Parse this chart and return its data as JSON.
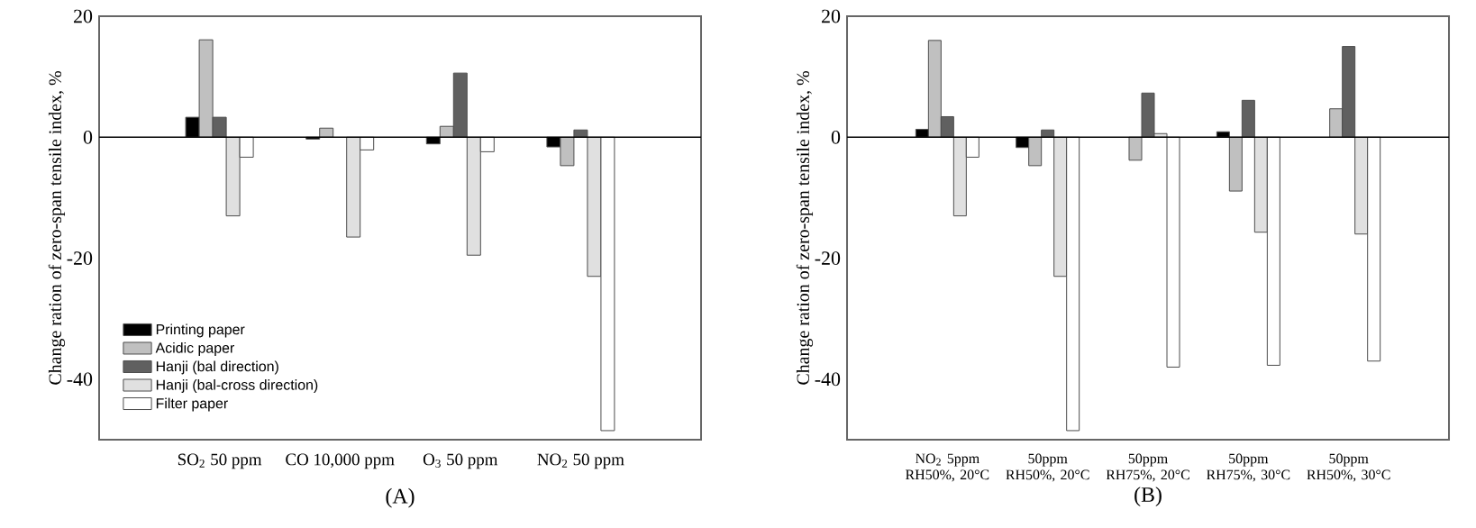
{
  "chart_data": [
    {
      "type": "bar",
      "xlabel": "(A)",
      "ylabel": "Change ration of zero-span tensile index, %",
      "categories": [
        "SO$_{2}$ 50 ppm",
        "CO 10,000 ppm",
        "O$_{3}$ 50 ppm",
        "NO$_{2}$ 50 ppm"
      ],
      "ylim": [
        -50,
        20
      ],
      "yticks": [
        -40,
        -20,
        0,
        20
      ],
      "legend": "bottom left",
      "ref_lines": [
        {
          "axis": "y",
          "value": 0,
          "color": "#000000"
        }
      ],
      "series": [
        {
          "name": "Printing paper",
          "color": "#000000",
          "values": [
            3.3,
            -0.3,
            -1.1,
            -1.6
          ]
        },
        {
          "name": "Acidic paper",
          "color": "#c0c0c0",
          "values": [
            16.1,
            1.5,
            1.8,
            -4.7
          ]
        },
        {
          "name": "Hanji (bal direction)",
          "color": "#606060",
          "values": [
            3.3,
            null,
            10.6,
            1.2
          ]
        },
        {
          "name": "Hanji (bal-cross direction)",
          "color": "#e0e0e0",
          "values": [
            -13,
            -16.5,
            -19.5,
            -23
          ]
        },
        {
          "name": "Filter paper",
          "color": "#ffffff",
          "values": [
            -3.3,
            -2.1,
            -2.4,
            -48.5
          ]
        }
      ]
    },
    {
      "type": "bar",
      "xlabel": "(B)",
      "ylabel": "Change ration of zero-span tensile index, %",
      "categories": [
        "NO$_{2}$ 5ppm RH50%, 20°C",
        "50ppm RH50%, 20°C",
        "50ppm RH75%, 20°C",
        "50ppm RH75%, 30°C",
        "50ppm RH50%, 30°C"
      ],
      "ylim": [
        -50,
        20
      ],
      "yticks": [
        -40,
        -20,
        0,
        20
      ],
      "ref_lines": [
        {
          "axis": "y",
          "value": 0,
          "color": "#000000"
        }
      ],
      "series": [
        {
          "color": "#000000",
          "values": [
            1.3,
            -1.7,
            null,
            0.9,
            null
          ]
        },
        {
          "color": "#c0c0c0",
          "values": [
            16,
            -4.7,
            -3.8,
            -8.9,
            4.7
          ]
        },
        {
          "color": "#606060",
          "values": [
            3.4,
            1.2,
            7.3,
            6.1,
            15
          ]
        },
        {
          "color": "#e0e0e0",
          "values": [
            -13,
            -23,
            0.6,
            -15.7,
            -16
          ]
        },
        {
          "color": "#ffffff",
          "values": [
            -3.3,
            -48.5,
            -38,
            -37.7,
            -37
          ]
        }
      ]
    }
  ]
}
